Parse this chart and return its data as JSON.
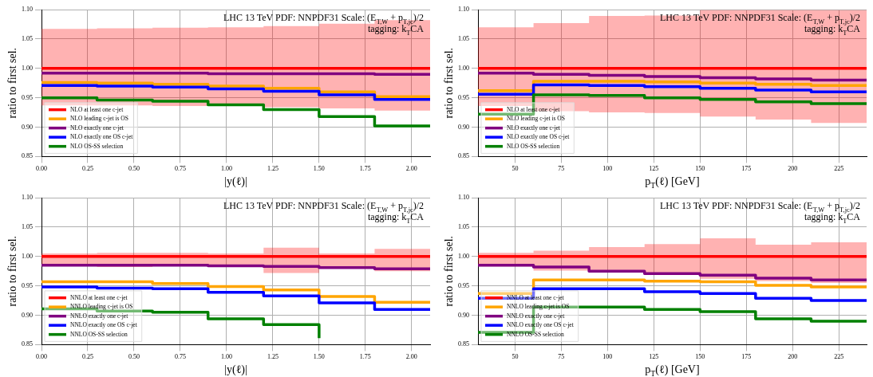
{
  "chart_data": [
    {
      "type": "step",
      "title": "LHC 13 TeV PDF: NNPDF31 Scale: (E$_{T,W}$ + p$_{T,jc}$)/2",
      "subtitle": "tagging: k$_{T}$CA",
      "xlabel": "|y(ℓ)|",
      "ylabel": "ratio to first sel.",
      "x": [
        0,
        0.3,
        0.6,
        0.9,
        1.2,
        1.5,
        1.8,
        2.1
      ],
      "series": [
        {
          "name": "NLO at least one c-jet",
          "color": "#ff0000",
          "values": [
            1.0,
            1.0,
            1.0,
            1.0,
            1.0,
            1.0,
            1.0,
            1.0
          ],
          "lower": [
            0.937,
            0.937,
            0.936,
            0.936,
            0.934,
            0.932,
            0.928,
            0.928
          ],
          "upper": [
            1.067,
            1.068,
            1.069,
            1.07,
            1.072,
            1.076,
            1.082,
            1.082
          ]
        },
        {
          "name": "NLO leading c-jet is OS",
          "color": "#ffa500",
          "values": [
            0.976,
            0.975,
            0.973,
            0.97,
            0.966,
            0.96,
            0.952,
            0.952
          ]
        },
        {
          "name": "NLO exactly one c-jet",
          "color": "#800080",
          "values": [
            0.992,
            0.992,
            0.992,
            0.991,
            0.991,
            0.991,
            0.99,
            0.99
          ]
        },
        {
          "name": "NLO exactly one OS c-jet",
          "color": "#0000ff",
          "values": [
            0.971,
            0.97,
            0.968,
            0.965,
            0.961,
            0.955,
            0.947,
            0.947
          ]
        },
        {
          "name": "NLO OS-SS selection",
          "color": "#008000",
          "values": [
            0.95,
            0.946,
            0.944,
            0.938,
            0.93,
            0.918,
            0.902,
            0.902
          ]
        }
      ],
      "xlim": [
        0,
        2.1
      ],
      "xticks": [
        {
          "value": 0,
          "label": "0.00"
        },
        0.25,
        {
          "value": 0.5,
          "label": "0.50"
        },
        0.75,
        {
          "value": 1,
          "label": "1.00"
        },
        1.25,
        {
          "value": 1.5,
          "label": "1.50"
        },
        1.75,
        {
          "value": 2,
          "label": "2.00"
        }
      ],
      "ylim": [
        0.85,
        1.1
      ],
      "yticks": [
        0.85,
        {
          "value": 0.9,
          "label": "0.90"
        },
        0.95,
        {
          "value": 1,
          "label": "1.00"
        },
        1.05,
        {
          "value": 1.1,
          "label": "1.10"
        }
      ],
      "grid": true,
      "legend": "bottom left"
    },
    {
      "type": "step",
      "title": "LHC 13 TeV PDF: NNPDF31 Scale: (E$_{T,W}$ + p$_{T,jc}$)/2",
      "subtitle": "tagging: k$_{T}$CA",
      "xlabel": "p$_{T}$(ℓ) [GeV]",
      "ylabel": "ratio to first sel.",
      "x": [
        30,
        60,
        90,
        120,
        150,
        180,
        210,
        240
      ],
      "series": [
        {
          "name": "NLO at least one c-jet",
          "color": "#ff0000",
          "values": [
            1.0,
            1.0,
            1.0,
            1.0,
            1.0,
            1.0,
            1.0,
            1.0
          ],
          "lower": [
            0.936,
            0.927,
            0.925,
            0.924,
            0.918,
            0.913,
            0.907,
            0.907
          ],
          "upper": [
            1.07,
            1.077,
            1.089,
            1.09,
            1.099,
            1.099,
            1.099,
            1.099
          ]
        },
        {
          "name": "NLO leading c-jet is OS",
          "color": "#ffa500",
          "values": [
            0.962,
            0.978,
            0.978,
            0.977,
            0.975,
            0.973,
            0.971,
            0.971
          ]
        },
        {
          "name": "NLO exactly one c-jet",
          "color": "#800080",
          "values": [
            0.992,
            0.99,
            0.988,
            0.986,
            0.984,
            0.982,
            0.98,
            0.98
          ]
        },
        {
          "name": "NLO exactly one OS c-jet",
          "color": "#0000ff",
          "values": [
            0.956,
            0.972,
            0.971,
            0.969,
            0.966,
            0.963,
            0.96,
            0.96
          ]
        },
        {
          "name": "NLO OS-SS selection",
          "color": "#008000",
          "values": [
            0.922,
            0.955,
            0.954,
            0.95,
            0.947,
            0.943,
            0.94,
            0.94
          ]
        }
      ],
      "xlim": [
        30,
        240
      ],
      "xticks": [
        50,
        75,
        100,
        125,
        150,
        175,
        200,
        225
      ],
      "ylim": [
        0.85,
        1.1
      ],
      "yticks": [
        0.85,
        {
          "value": 0.9,
          "label": "0.90"
        },
        0.95,
        {
          "value": 1,
          "label": "1.00"
        },
        1.05,
        {
          "value": 1.1,
          "label": "1.10"
        }
      ],
      "grid": true,
      "legend": "bottom left"
    },
    {
      "type": "step",
      "title": "LHC 13 TeV PDF: NNPDF31 Scale: (E$_{T,W}$ + p$_{T,jc}$)/2",
      "subtitle": "tagging: k$_{T}$CA",
      "xlabel": "|y(ℓ)|",
      "ylabel": "ratio to first sel.",
      "x": [
        0,
        0.3,
        0.6,
        0.9,
        1.2,
        1.5,
        1.8,
        2.1
      ],
      "series": [
        {
          "name": "NNLO at least one c-jet",
          "color": "#ff0000",
          "values": [
            1.0,
            1.0,
            1.0,
            1.0,
            1.0,
            1.0,
            1.0,
            1.0
          ],
          "lower": [
            0.984,
            0.982,
            0.984,
            0.983,
            0.972,
            0.98,
            0.975,
            0.975
          ],
          "upper": [
            1.005,
            1.006,
            1.006,
            1.005,
            1.015,
            1.005,
            1.013,
            1.013
          ]
        },
        {
          "name": "NNLO leading c-jet is OS",
          "color": "#ffa500",
          "values": [
            0.957,
            0.957,
            0.954,
            0.949,
            0.943,
            0.932,
            0.922,
            0.922
          ]
        },
        {
          "name": "NNLO exactly one c-jet",
          "color": "#800080",
          "values": [
            0.985,
            0.985,
            0.985,
            0.984,
            0.983,
            0.981,
            0.979,
            0.979
          ]
        },
        {
          "name": "NNLO exactly one OS c-jet",
          "color": "#0000ff",
          "values": [
            0.948,
            0.946,
            0.945,
            0.939,
            0.933,
            0.921,
            0.91,
            0.91
          ]
        },
        {
          "name": "NNLO OS-SS selection",
          "color": "#008000",
          "values": [
            0.911,
            0.907,
            0.905,
            0.894,
            0.884,
            0.861,
            null,
            null
          ]
        }
      ],
      "xlim": [
        0,
        2.1
      ],
      "xticks": [
        {
          "value": 0,
          "label": "0.00"
        },
        0.25,
        {
          "value": 0.5,
          "label": "0.50"
        },
        0.75,
        {
          "value": 1,
          "label": "1.00"
        },
        1.25,
        {
          "value": 1.5,
          "label": "1.50"
        },
        1.75,
        {
          "value": 2,
          "label": "2.00"
        }
      ],
      "ylim": [
        0.85,
        1.1
      ],
      "yticks": [
        0.85,
        {
          "value": 0.9,
          "label": "0.90"
        },
        0.95,
        {
          "value": 1,
          "label": "1.00"
        },
        1.05,
        {
          "value": 1.1,
          "label": "1.10"
        }
      ],
      "grid": true,
      "legend": "bottom left"
    },
    {
      "type": "step",
      "title": "LHC 13 TeV PDF: NNPDF31 Scale: (E$_{T,W}$ + p$_{T,jc}$)/2",
      "subtitle": "tagging: k$_{T}$CA",
      "xlabel": "p$_{T}$(ℓ) [GeV]",
      "ylabel": "ratio to first sel.",
      "x": [
        30,
        60,
        90,
        120,
        150,
        180,
        210,
        240
      ],
      "series": [
        {
          "name": "NNLO at least one c-jet",
          "color": "#ff0000",
          "values": [
            1.0,
            1.0,
            1.0,
            1.0,
            1.0,
            1.0,
            1.0,
            1.0
          ],
          "lower": [
            0.983,
            0.976,
            0.975,
            0.97,
            0.962,
            0.958,
            0.955,
            0.955
          ],
          "upper": [
            1.006,
            1.01,
            1.016,
            1.021,
            1.031,
            1.02,
            1.024,
            1.024
          ]
        },
        {
          "name": "NNLO leading c-jet is OS",
          "color": "#ffa500",
          "values": [
            0.937,
            0.96,
            0.96,
            0.958,
            0.957,
            0.951,
            0.948,
            0.948
          ]
        },
        {
          "name": "NNLO exactly one c-jet",
          "color": "#800080",
          "values": [
            0.985,
            0.982,
            0.975,
            0.971,
            0.968,
            0.963,
            0.96,
            0.96
          ]
        },
        {
          "name": "NNLO exactly one OS c-jet",
          "color": "#0000ff",
          "values": [
            0.929,
            0.945,
            0.945,
            0.94,
            0.937,
            0.929,
            0.925,
            0.925
          ]
        },
        {
          "name": "NNLO OS-SS selection",
          "color": "#008000",
          "values": [
            0.871,
            0.914,
            0.914,
            0.91,
            0.906,
            0.894,
            0.89,
            0.89
          ]
        }
      ],
      "xlim": [
        30,
        240
      ],
      "xticks": [
        50,
        75,
        100,
        125,
        150,
        175,
        200,
        225
      ],
      "ylim": [
        0.85,
        1.1
      ],
      "yticks": [
        0.85,
        {
          "value": 0.9,
          "label": "0.90"
        },
        0.95,
        {
          "value": 1,
          "label": "1.00"
        },
        1.05,
        {
          "value": 1.1,
          "label": "1.10"
        }
      ],
      "grid": true,
      "legend": "bottom left"
    }
  ]
}
